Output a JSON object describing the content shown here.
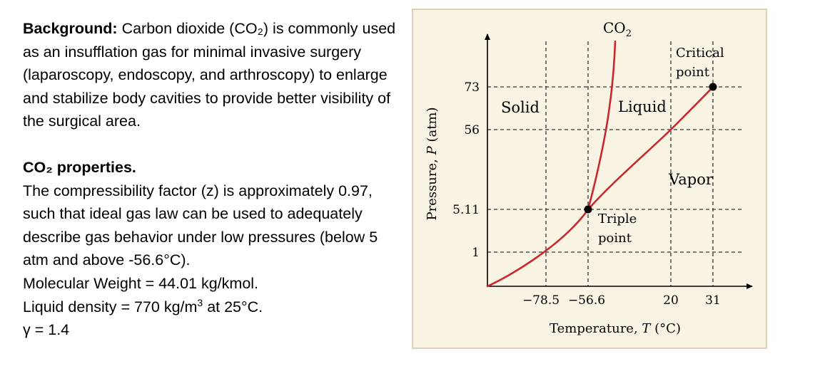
{
  "text": {
    "background_heading": "Background:",
    "background_body": "Carbon dioxide (CO₂) is commonly used as an insufflation gas for minimal invasive surgery (laparoscopy, endoscopy, and arthroscopy) to enlarge and stabilize body cavities to provide better visibility of the surgical area.",
    "properties_heading": "CO₂ properties.",
    "compressibility": "The compressibility factor (z) is approximately 0.97, such that ideal gas law can be used to adequately describe gas behavior under low pressures (below 5 atm and above -56.6°C).",
    "molecular_weight": "Molecular Weight = 44.01 kg/kmol.",
    "liquid_density_prefix": "Liquid density = 770 kg/m",
    "liquid_density_exp": "3",
    "liquid_density_suffix": " at 25°C.",
    "gamma": "γ = 1.4"
  },
  "diagram": {
    "title_base": "CO",
    "title_sub": "2",
    "y_axis_label_prefix": "Pressure, ",
    "y_axis_label_var": "P",
    "y_axis_label_unit": " (atm)",
    "x_axis_label_prefix": "Temperature, ",
    "x_axis_label_var": "T",
    "x_axis_label_unit": " (°C)",
    "y_ticks": [
      "73",
      "56",
      "5.11",
      "1"
    ],
    "x_ticks": [
      "−78.5",
      "−56.6",
      "20",
      "31"
    ],
    "regions": {
      "solid": "Solid",
      "liquid": "Liquid",
      "vapor": "Vapor"
    },
    "critical_point_line1": "Critical",
    "critical_point_line2": "point",
    "triple_point_line1": "Triple",
    "triple_point_line2": "point",
    "curve_color": "#c8282d"
  }
}
